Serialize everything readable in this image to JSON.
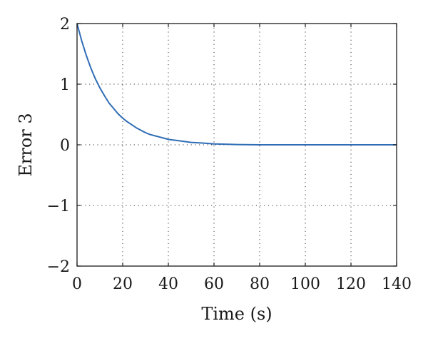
{
  "chart_data": {
    "type": "line",
    "title": "",
    "xlabel": "Time (s)",
    "ylabel": "Error 3",
    "xlim": [
      0,
      140
    ],
    "ylim": [
      -2,
      2
    ],
    "xticks": [
      0,
      20,
      40,
      60,
      80,
      100,
      120,
      140
    ],
    "yticks": [
      -2,
      -1,
      0,
      1,
      2
    ],
    "xtick_labels": [
      "0",
      "20",
      "40",
      "60",
      "80",
      "100",
      "120",
      "140"
    ],
    "ytick_labels": [
      "−2",
      "−1",
      "0",
      "1",
      "2"
    ],
    "grid": true,
    "legend": "none",
    "series": [
      {
        "color": "#2f6db5",
        "x": [
          0,
          2,
          4,
          6,
          8,
          10,
          12,
          14,
          16,
          18,
          20,
          22,
          24,
          26,
          28,
          30,
          32,
          34,
          36,
          38,
          40,
          42,
          44,
          46,
          48,
          50,
          55,
          60,
          65,
          70,
          80,
          90,
          100,
          110,
          120,
          130,
          140
        ],
        "y": [
          2.0,
          1.72,
          1.48,
          1.27,
          1.09,
          0.94,
          0.81,
          0.69,
          0.6,
          0.51,
          0.44,
          0.38,
          0.33,
          0.28,
          0.24,
          0.2,
          0.17,
          0.15,
          0.13,
          0.11,
          0.09,
          0.08,
          0.07,
          0.06,
          0.05,
          0.04,
          0.03,
          0.015,
          0.01,
          0.005,
          0.0,
          0.0,
          0.0,
          0.0,
          0.0,
          0.0,
          0.0
        ]
      }
    ]
  }
}
